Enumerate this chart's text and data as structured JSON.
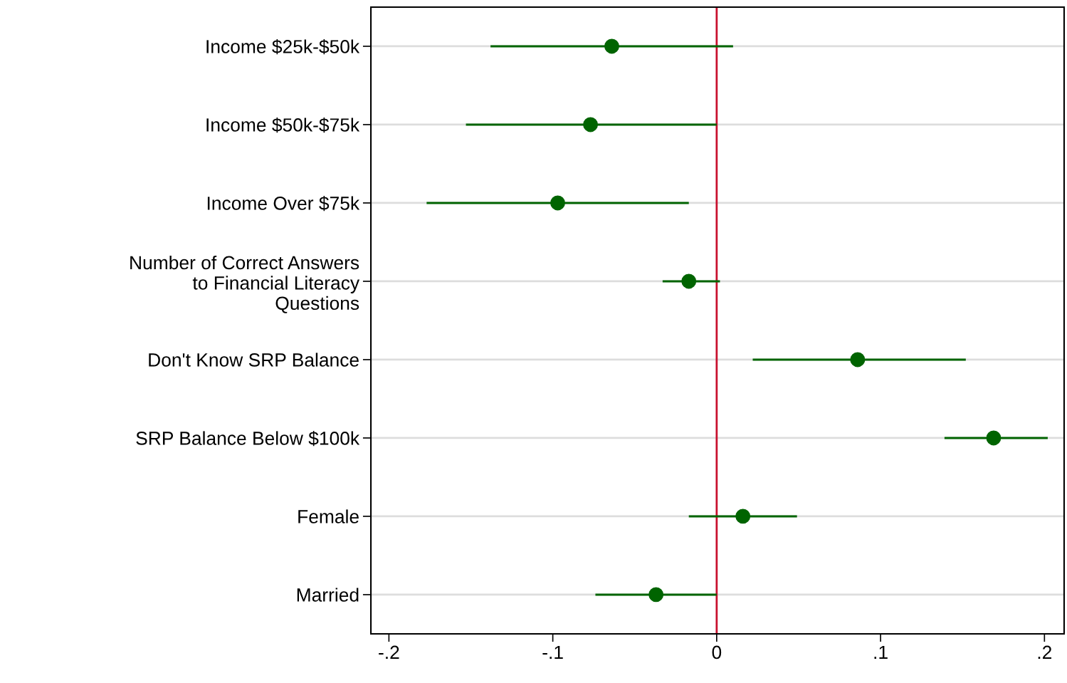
{
  "chart_data": {
    "type": "scatter",
    "orientation": "horizontal",
    "categories": [
      "Income $25k-$50k",
      "Income $50k-$75k",
      "Income Over $75k",
      "Number of Correct Answers\nto Financial Literacy\nQuestions",
      "Don't Know SRP Balance",
      "SRP Balance Below $100k",
      "Female",
      "Married"
    ],
    "series": [
      {
        "color": "#006400",
        "values": [
          -0.064,
          -0.077,
          -0.097,
          -0.017,
          0.086,
          0.169,
          0.016,
          -0.037
        ],
        "errors": [
          [
            -0.138,
            0.01
          ],
          [
            -0.153,
            0.0
          ],
          [
            -0.177,
            -0.017
          ],
          [
            -0.033,
            0.002
          ],
          [
            0.022,
            0.152
          ],
          [
            0.139,
            0.202
          ],
          [
            -0.017,
            0.049
          ],
          [
            -0.074,
            0.0
          ]
        ]
      }
    ],
    "xlim": [
      -0.211,
      0.212
    ],
    "xticks": [
      {
        "value": -0.2,
        "label": "-.2"
      },
      {
        "value": -0.1,
        "label": "-.1"
      },
      0,
      {
        "value": 0.1,
        "label": ".1"
      },
      {
        "value": 0.2,
        "label": ".2"
      }
    ],
    "ref_lines": [
      {
        "axis": "x",
        "value": 0,
        "color": "#c8102e"
      }
    ],
    "grid": "y",
    "marker": "circle"
  }
}
